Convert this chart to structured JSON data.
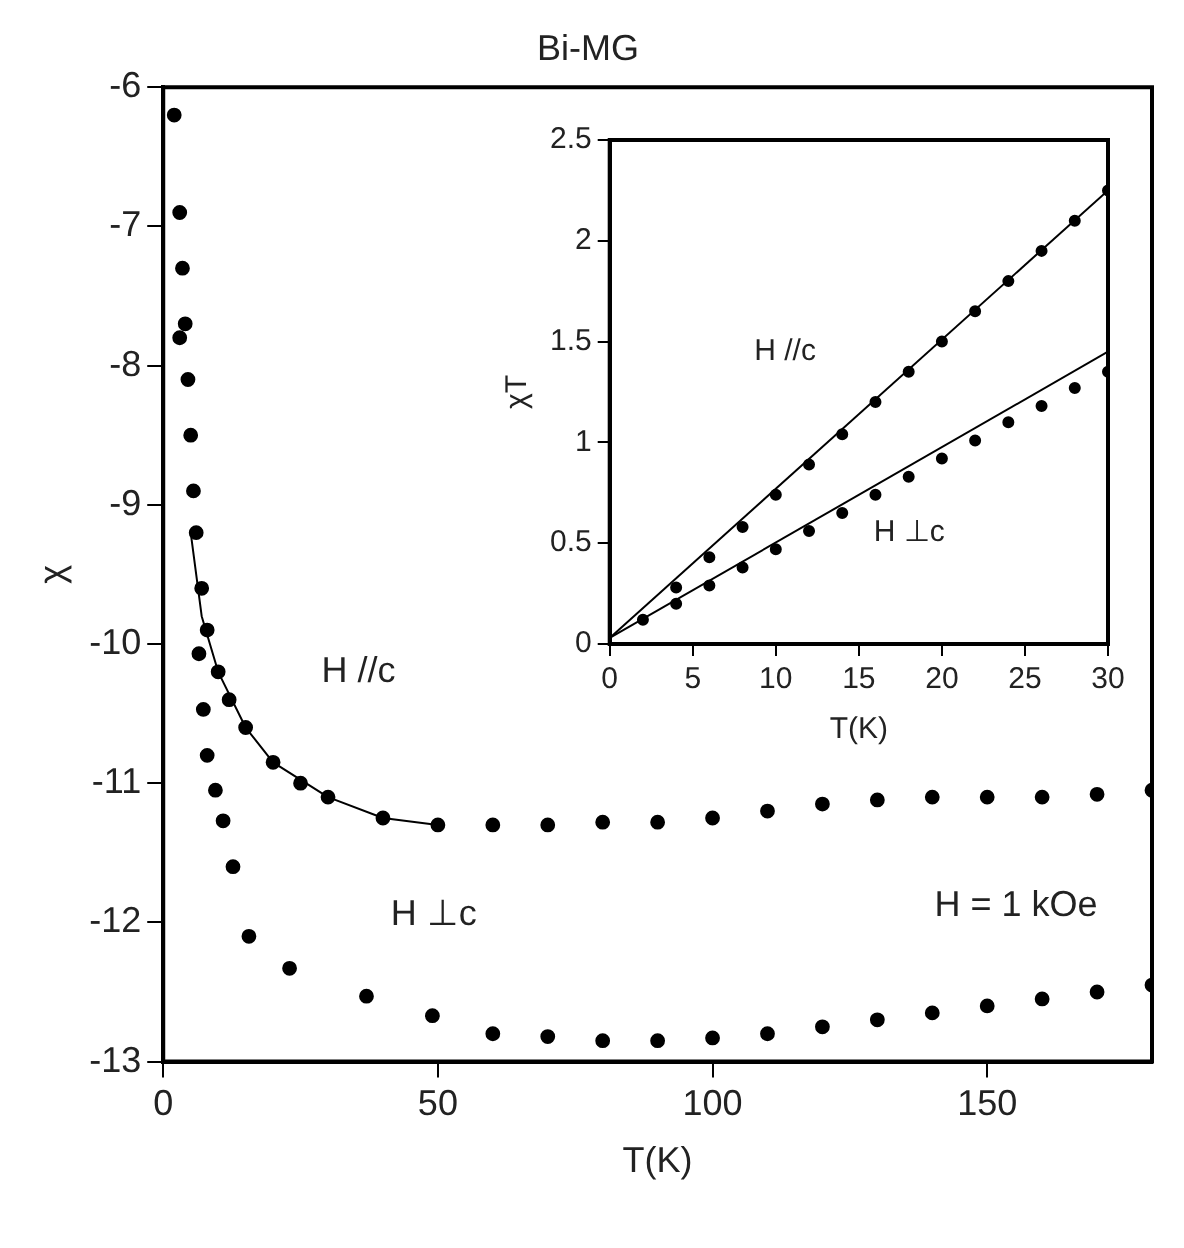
{
  "chart_data": [
    {
      "type": "scatter",
      "title": "Bi-MG",
      "xlabel": "T(K)",
      "ylabel": "χ",
      "xlim": [
        0,
        180
      ],
      "ylim": [
        -13,
        -6
      ],
      "xticks": [
        0,
        50,
        100,
        150
      ],
      "yticks": [
        -13,
        -12,
        -11,
        -10,
        -9,
        -8,
        -7,
        -6
      ],
      "grid": false,
      "series": [
        {
          "color": "#000000",
          "marker": "circle",
          "x": [
            2,
            3,
            3.5,
            4,
            4.5,
            5,
            5.5,
            6,
            7,
            8,
            10,
            12,
            15,
            20,
            25,
            30,
            40,
            50,
            60,
            70,
            80,
            90,
            100,
            110,
            120,
            130,
            140,
            150,
            160,
            170,
            180
          ],
          "values": [
            -6.2,
            -6.9,
            -7.3,
            -7.7,
            -8.1,
            -8.5,
            -8.9,
            -9.2,
            -9.6,
            -9.9,
            -10.2,
            -10.4,
            -10.6,
            -10.85,
            -11,
            -11.1,
            -11.25,
            -11.3,
            -11.3,
            -11.3,
            -11.28,
            -11.28,
            -11.25,
            -11.2,
            -11.15,
            -11.12,
            -11.1,
            -11.1,
            -11.1,
            -11.08,
            -11.05
          ]
        },
        {
          "color": "#000000",
          "marker": "circle",
          "x": [
            3,
            6.5,
            7.3,
            8,
            9.5,
            10.9,
            12.7,
            15.6,
            23,
            37,
            49,
            60,
            70,
            80,
            90,
            100,
            110,
            120,
            130,
            140,
            150,
            160,
            170,
            180
          ],
          "values": [
            -7.8,
            -10.07,
            -10.47,
            -10.8,
            -11.05,
            -11.27,
            -11.6,
            -12.1,
            -12.33,
            -12.53,
            -12.67,
            -12.8,
            -12.82,
            -12.85,
            -12.85,
            -12.83,
            -12.8,
            -12.75,
            -12.7,
            -12.65,
            -12.6,
            -12.55,
            -12.5,
            -12.45
          ]
        },
        {
          "type": "line",
          "marker": "none",
          "color": "#000000",
          "x": [
            5,
            7,
            10,
            15,
            20,
            30,
            40,
            50
          ],
          "values": [
            -9.2,
            -9.8,
            -10.2,
            -10.6,
            -10.85,
            -11.1,
            -11.25,
            -11.3
          ]
        }
      ],
      "annotations": [
        "H //c",
        "H ⊥c",
        "H = 1 kOe"
      ]
    },
    {
      "type": "scatter",
      "xlabel": "T(K)",
      "ylabel": "χT",
      "xlim": [
        0,
        30
      ],
      "ylim": [
        0,
        2.5
      ],
      "xticks": [
        0,
        5,
        10,
        15,
        20,
        25,
        30
      ],
      "yticks": [
        0,
        0.5,
        1,
        1.5,
        2,
        2.5
      ],
      "grid": false,
      "series": [
        {
          "color": "#000000",
          "marker": "circle",
          "x": [
            2,
            4,
            6,
            8,
            10,
            12,
            14,
            16,
            18,
            20,
            22,
            24,
            26,
            28,
            30
          ],
          "values": [
            0.12,
            0.28,
            0.43,
            0.58,
            0.74,
            0.89,
            1.04,
            1.2,
            1.35,
            1.5,
            1.65,
            1.8,
            1.95,
            2.1,
            2.25
          ]
        },
        {
          "color": "#000000",
          "marker": "circle",
          "x": [
            4,
            6,
            8,
            10,
            12,
            14,
            16,
            18,
            20,
            22,
            24,
            26,
            28,
            30
          ],
          "values": [
            0.2,
            0.29,
            0.38,
            0.47,
            0.56,
            0.65,
            0.74,
            0.83,
            0.92,
            1.01,
            1.1,
            1.18,
            1.27,
            1.35
          ]
        },
        {
          "type": "line",
          "marker": "none",
          "color": "#000000",
          "x": [
            0,
            30
          ],
          "values": [
            0.03,
            2.25
          ]
        },
        {
          "type": "line",
          "marker": "none",
          "color": "#000000",
          "x": [
            0,
            30
          ],
          "values": [
            0.03,
            1.45
          ]
        }
      ],
      "annotations": [
        "H //c",
        "H ⊥c"
      ]
    }
  ]
}
